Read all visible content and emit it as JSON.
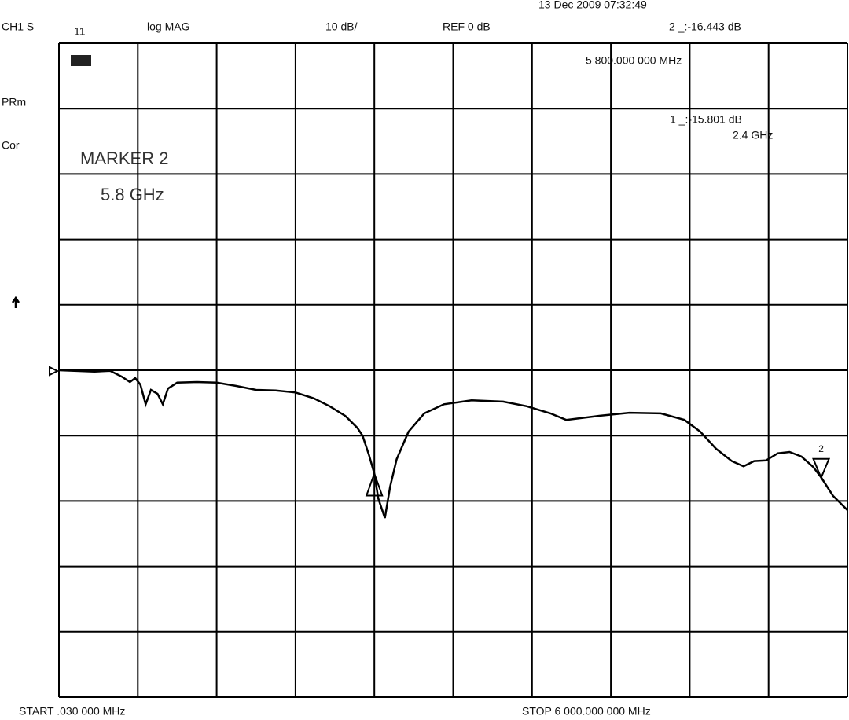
{
  "chart_data": {
    "type": "line",
    "timestamp": "13 Dec 2009  07:32:49",
    "channel": "CH1 S",
    "parameter": "11",
    "format": "log MAG",
    "scale": "10 dB/",
    "reference": "REF 0 dB",
    "marker_readouts": [
      "2 _:-16.443 dB",
      "5 800.000 000 MHz",
      "1 _:-15.801 dB",
      "2.4 GHz"
    ],
    "side_labels": [
      "PRm",
      "Cor"
    ],
    "annotation": [
      "MARKER 2",
      "5.8 GHz"
    ],
    "start_label": "START  .030 000 MHz",
    "stop_label": "STOP 6 000.000 000 MHz",
    "color": "#000000",
    "x": [
      0.03,
      270,
      390,
      480,
      540,
      580,
      620,
      660,
      700,
      750,
      790,
      830,
      900,
      1050,
      1200,
      1350,
      1500,
      1650,
      1800,
      1940,
      2060,
      2180,
      2270,
      2310,
      2360,
      2400,
      2430,
      2480,
      2520,
      2570,
      2660,
      2780,
      2930,
      3140,
      3380,
      3560,
      3740,
      3860,
      4100,
      4340,
      4580,
      4760,
      4880,
      5000,
      5120,
      5210,
      5290,
      5380,
      5470,
      5560,
      5650,
      5740,
      5800,
      5890,
      6000
    ],
    "values": [
      0,
      -0.2,
      -0.1,
      -1,
      -1.8,
      -1.2,
      -2.2,
      -5.2,
      -3,
      -3.6,
      -5.2,
      -2.8,
      -1.9,
      -1.8,
      -1.9,
      -2.4,
      -3,
      -3.1,
      -3.4,
      -4.3,
      -5.5,
      -7,
      -8.8,
      -10,
      -13,
      -15.8,
      -19.6,
      -22.6,
      -17.8,
      -13.6,
      -9.4,
      -6.6,
      -5.2,
      -4.6,
      -4.8,
      -5.5,
      -6.6,
      -7.6,
      -7,
      -6.5,
      -6.6,
      -7.6,
      -9.4,
      -12,
      -13.9,
      -14.7,
      -13.9,
      -13.8,
      -12.7,
      -12.5,
      -13.2,
      -14.8,
      -16.4,
      -19.2,
      -21.4
    ],
    "markers": [
      {
        "x": 2400,
        "y": -15.801,
        "shape": "up"
      },
      {
        "x": 5800,
        "y": -16.443,
        "shape": "down",
        "label": "2"
      }
    ],
    "xlim": [
      0.03,
      6000
    ],
    "ylim": [
      -50,
      50
    ],
    "xticks": [
      0.03,
      600,
      1200,
      1800,
      2400,
      3000,
      3600,
      4200,
      4800,
      5400,
      6000
    ],
    "yticks": [
      -50,
      -40,
      -30,
      -20,
      -10,
      0,
      10,
      20,
      30,
      40,
      50
    ],
    "grid": true
  }
}
